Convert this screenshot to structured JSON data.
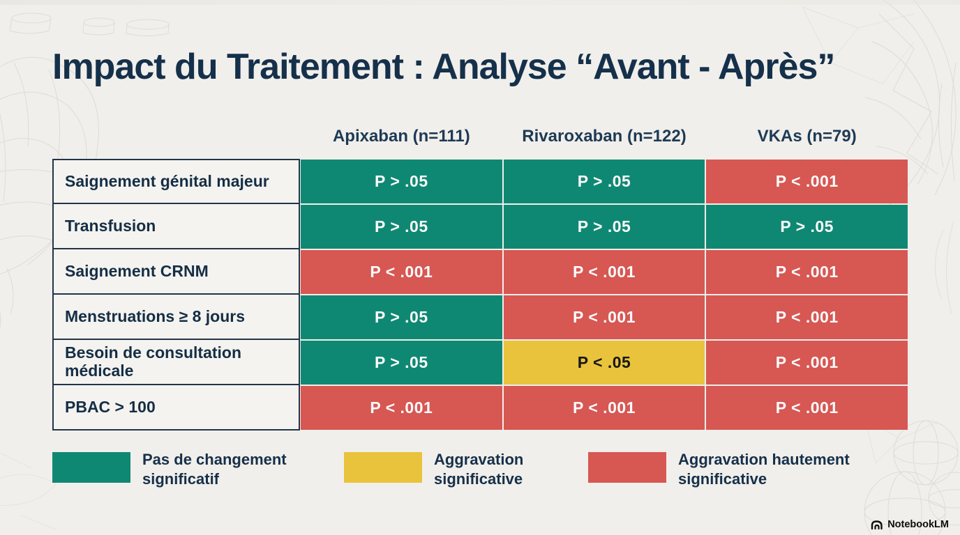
{
  "chart_data": {
    "type": "table",
    "title": "Impact du Traitement : Analyse “Avant - Après”",
    "columns": [
      "Apixaban (n=111)",
      "Rivaroxaban (n=122)",
      "VKAs (n=79)"
    ],
    "row_labels": [
      "Saignement génital majeur",
      "Transfusion",
      "Saignement CRNM",
      "Menstruations ≥ 8 jours",
      "Besoin de consultation médicale",
      "PBAC > 100"
    ],
    "cells": [
      [
        {
          "value": "P > .05",
          "status": "no_change"
        },
        {
          "value": "P > .05",
          "status": "no_change"
        },
        {
          "value": "P < .001",
          "status": "highly_significant_worsening"
        }
      ],
      [
        {
          "value": "P > .05",
          "status": "no_change"
        },
        {
          "value": "P > .05",
          "status": "no_change"
        },
        {
          "value": "P > .05",
          "status": "no_change"
        }
      ],
      [
        {
          "value": "P < .001",
          "status": "highly_significant_worsening"
        },
        {
          "value": "P < .001",
          "status": "highly_significant_worsening"
        },
        {
          "value": "P < .001",
          "status": "highly_significant_worsening"
        }
      ],
      [
        {
          "value": "P > .05",
          "status": "no_change"
        },
        {
          "value": "P < .001",
          "status": "highly_significant_worsening"
        },
        {
          "value": "P < .001",
          "status": "highly_significant_worsening"
        }
      ],
      [
        {
          "value": "P > .05",
          "status": "no_change"
        },
        {
          "value": "P < .05",
          "status": "significant_worsening"
        },
        {
          "value": "P < .001",
          "status": "highly_significant_worsening"
        }
      ],
      [
        {
          "value": "P < .001",
          "status": "highly_significant_worsening"
        },
        {
          "value": "P < .001",
          "status": "highly_significant_worsening"
        },
        {
          "value": "P < .001",
          "status": "highly_significant_worsening"
        }
      ]
    ],
    "status_colors": {
      "no_change": "#0F8873",
      "significant_worsening": "#E9C33C",
      "highly_significant_worsening": "#D75753"
    },
    "status_text_colors": {
      "no_change": "#FBFBFB",
      "significant_worsening": "#161616",
      "highly_significant_worsening": "#FBFBFB"
    },
    "legend": [
      {
        "status": "no_change",
        "label": "Pas de changement significatif"
      },
      {
        "status": "significant_worsening",
        "label": "Aggravation significative"
      },
      {
        "status": "highly_significant_worsening",
        "label": "Aggravation hautement significative"
      }
    ],
    "layout_hints": {
      "legend_position": "bottom",
      "grid": false,
      "title_color": "#15304A",
      "background": "#F1EFEB"
    }
  },
  "footer": {
    "brand": "NotebookLM"
  }
}
